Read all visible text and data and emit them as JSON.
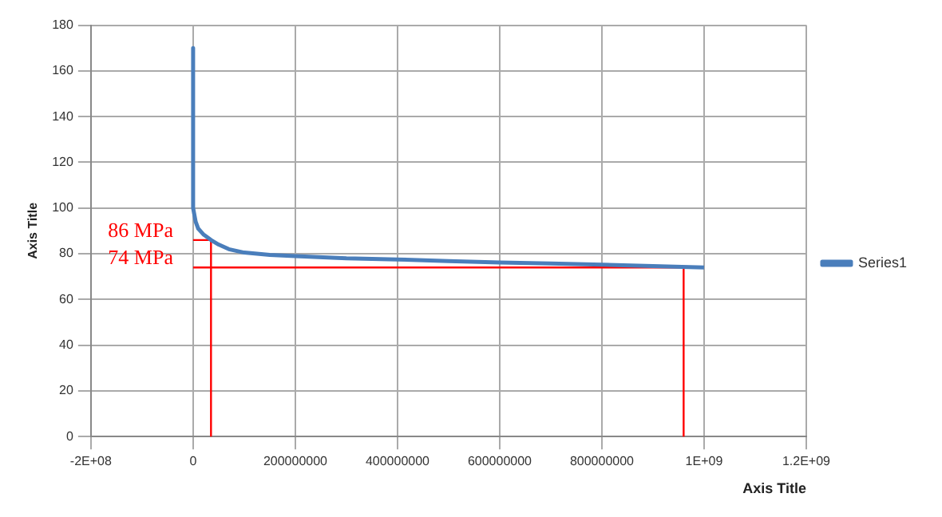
{
  "chart_data": {
    "type": "line",
    "xlabel": "Axis Title",
    "ylabel": "Axis Title",
    "xlim": [
      -200000000,
      1200000000
    ],
    "xticks": [
      {
        "value": -200000000,
        "label": "-2E+08"
      },
      0,
      200000000,
      400000000,
      600000000,
      800000000,
      {
        "value": 1000000000,
        "label": "1E+09"
      },
      {
        "value": 1200000000,
        "label": "1.2E+09"
      }
    ],
    "ylim": [
      0,
      180
    ],
    "yticks": [
      0,
      20,
      40,
      60,
      80,
      100,
      120,
      140,
      160,
      180
    ],
    "grid": true,
    "legend": "right",
    "marker": "none",
    "series": [
      {
        "name": "Series1",
        "color": "#4a7ebb",
        "x": [
          0,
          0,
          5000000,
          10000000,
          20000000,
          35000000,
          50000000,
          70000000,
          100000000,
          150000000,
          200000000,
          300000000,
          400000000,
          500000000,
          600000000,
          700000000,
          800000000,
          900000000,
          1000000000
        ],
        "values": [
          170,
          100,
          94,
          91,
          88.5,
          86,
          84,
          82,
          80.5,
          79.5,
          79,
          78,
          77.5,
          76.8,
          76.2,
          75.7,
          75.2,
          74.6,
          74
        ]
      },
      {
        "color": "#ff0000",
        "x": [
          0,
          35000000,
          35000000
        ],
        "values": [
          86,
          86,
          0
        ]
      },
      {
        "color": "#ff0000",
        "x": [
          0,
          960000000,
          960000000
        ],
        "values": [
          74,
          74,
          0
        ]
      }
    ],
    "annotations": [
      "86 MPa",
      "74 MPa"
    ]
  }
}
